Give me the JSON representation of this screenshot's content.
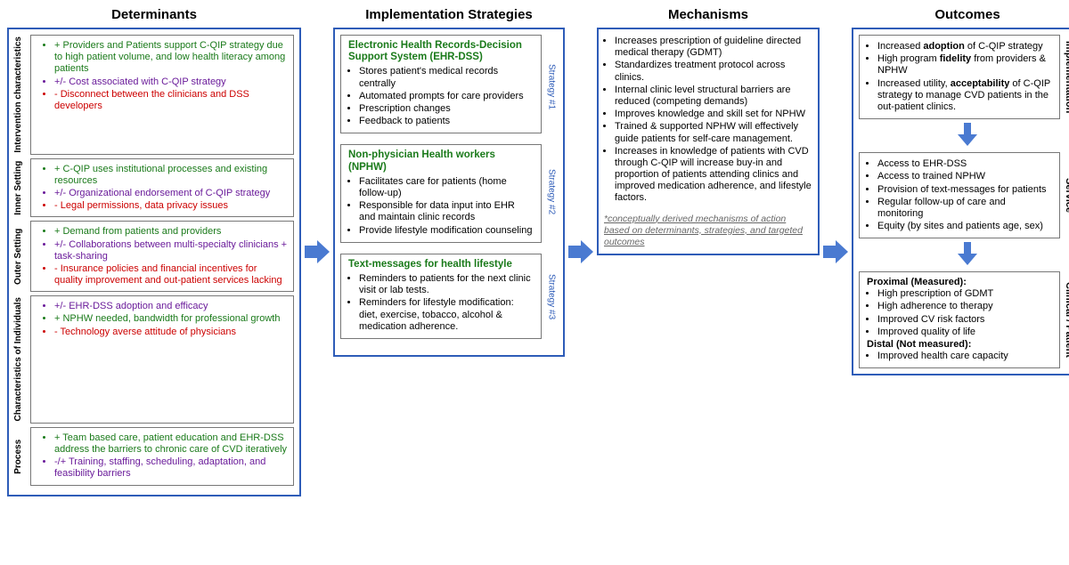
{
  "colors": {
    "border": "#2e5cb8",
    "arrow_fill": "#4a7ad1",
    "green": "#1a7a1a",
    "purple": "#6a1b9a",
    "red": "#cc0000",
    "footnote": "#666666"
  },
  "headers": {
    "determinants": "Determinants",
    "strategies": "Implementation Strategies",
    "mechanisms": "Mechanisms",
    "outcomes": "Outcomes"
  },
  "determinants": [
    {
      "label": "Intervention characteristics",
      "items": [
        {
          "color": "green",
          "text": "+ Providers and Patients support C-QIP strategy due to high patient volume, and low health literacy among patients"
        },
        {
          "color": "purple",
          "text": "+/- Cost associated with C-QIP strategy"
        },
        {
          "color": "red",
          "text": "- Disconnect between the clinicians and DSS developers"
        }
      ]
    },
    {
      "label": "Inner Setting",
      "items": [
        {
          "color": "green",
          "text": "+ C-QIP uses institutional processes and existing resources"
        },
        {
          "color": "purple",
          "text": "+/- Organizational endorsement of C-QIP strategy"
        },
        {
          "color": "red",
          "text": "- Legal permissions, data privacy issues"
        }
      ]
    },
    {
      "label": "Outer Setting",
      "items": [
        {
          "color": "green",
          "text": "+ Demand from patients and providers"
        },
        {
          "color": "purple",
          "text": "+/- Collaborations between multi-specialty clinicians + task-sharing"
        },
        {
          "color": "red",
          "text": "- Insurance policies and financial incentives for quality improvement and out-patient services lacking"
        }
      ]
    },
    {
      "label": "Characteristics of Individuals",
      "items": [
        {
          "color": "purple",
          "text": "+/- EHR-DSS adoption and efficacy"
        },
        {
          "color": "green",
          "text": "+ NPHW needed, bandwidth for professional growth"
        },
        {
          "color": "red",
          "text": "- Technology averse attitude of physicians"
        }
      ]
    },
    {
      "label": "Process",
      "items": [
        {
          "color": "green",
          "text": "+ Team based care, patient education and EHR-DSS address the barriers to chronic care of CVD iteratively"
        },
        {
          "color": "purple",
          "text": "-/+ Training, staffing, scheduling, adaptation, and feasibility barriers"
        }
      ]
    }
  ],
  "strategies": [
    {
      "tag": "Strategy #1",
      "title": "Electronic Health Records-Decision Support System (EHR-DSS)",
      "items": [
        "Stores patient's medical records centrally",
        "Automated prompts for care providers",
        "Prescription changes",
        "Feedback to patients"
      ]
    },
    {
      "tag": "Strategy #2",
      "title": "Non-physician Health workers (NPHW)",
      "items": [
        "Facilitates care for patients (home follow-up)",
        "Responsible for data input into EHR and maintain clinic records",
        "Provide lifestyle modification counseling"
      ]
    },
    {
      "tag": "Strategy #3",
      "title": "Text-messages for health lifestyle",
      "items": [
        "Reminders to patients for the next clinic visit or lab tests.",
        "Reminders for lifestyle modification: diet, exercise, tobacco, alcohol & medication adherence."
      ]
    }
  ],
  "mechanisms": {
    "items": [
      "Increases prescription of guideline directed medical therapy (GDMT)",
      "Standardizes treatment protocol across clinics.",
      "Internal clinic level structural barriers are reduced (competing demands)",
      "Improves knowledge and skill set for NPHW",
      "Trained & supported NPHW will effectively guide patients for self-care management.",
      "Increases in knowledge of patients with CVD through C-QIP will increase buy-in and proportion of patients attending clinics and improved medication adherence, and lifestyle factors."
    ],
    "footnote": "*conceptually derived mechanisms of action based on determinants, strategies, and targeted outcomes"
  },
  "outcomes": {
    "implementation": {
      "label": "Implementation",
      "items_html": [
        "Increased <b>adoption</b> of C-QIP strategy",
        "High program <b>fidelity</b> from providers & NPHW",
        "Increased utility, <b>acceptability</b> of C-QIP strategy to manage CVD patients in the out-patient clinics."
      ]
    },
    "service": {
      "label": "Service",
      "items": [
        "Access to EHR-DSS",
        "Access to trained NPHW",
        "Provision of text-messages for patients",
        "Regular follow-up of care and monitoring",
        "Equity (by sites and patients age, sex)"
      ]
    },
    "clinical": {
      "label": "Clinical / Patient",
      "proximal_head": "Proximal (Measured):",
      "proximal": [
        "High prescription of GDMT",
        "High adherence to therapy",
        "Improved CV risk factors",
        "Improved quality of life"
      ],
      "distal_head": "Distal (Not measured):",
      "distal": [
        "Improved health care capacity"
      ]
    }
  }
}
